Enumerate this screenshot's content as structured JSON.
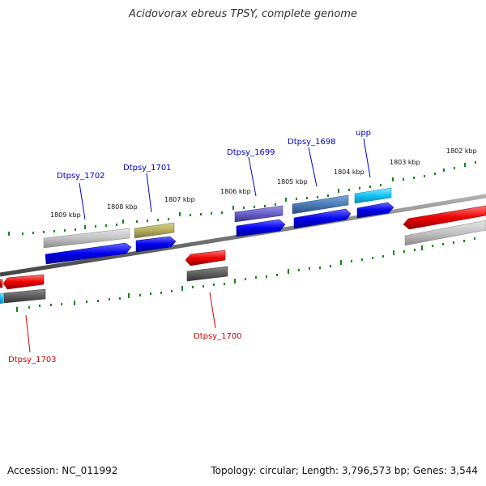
{
  "title": "Acidovorax ebreus TPSY, complete genome",
  "footer": {
    "accession": "Accession: NC_011992",
    "summary": "Topology: circular; Length: 3,796,573 bp; Genes: 3,544"
  },
  "scale_labels": [
    "1809 kbp",
    "1808 kbp",
    "1807 kbp",
    "1806 kbp",
    "1805 kbp",
    "1804 kbp",
    "1803 kbp",
    "1802 kbp"
  ],
  "gene_labels": {
    "dtpsy_1702": "Dtpsy_1702",
    "dtpsy_1701": "Dtpsy_1701",
    "dtpsy_1699": "Dtpsy_1699",
    "dtpsy_1698": "Dtpsy_1698",
    "upp": "upp",
    "dtpsy_1700": "Dtpsy_1700",
    "dtpsy_1703": "Dtpsy_1703"
  },
  "colors": {
    "forward_label": "#0000cc",
    "reverse_label": "#cc0000",
    "cds_forward": "#0000ee",
    "cds_reverse": "#ee0000",
    "tick": "#118811",
    "backbone": "#7a7a7a"
  }
}
